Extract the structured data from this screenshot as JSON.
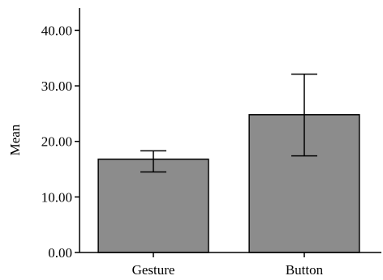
{
  "chart_data": {
    "type": "bar",
    "title": "",
    "xlabel": "",
    "ylabel": "Mean",
    "ylim": [
      0,
      44
    ],
    "yticks": [
      0,
      10,
      20,
      30,
      40
    ],
    "ytick_labels": [
      "0.00",
      "10.00",
      "20.00",
      "30.00",
      "40.00"
    ],
    "categories": [
      "Gesture",
      "Button"
    ],
    "values": [
      16.8,
      24.8
    ],
    "error_low": [
      14.5,
      17.4
    ],
    "error_high": [
      18.3,
      32.1
    ],
    "grid": false,
    "legend": "none"
  },
  "colors": {
    "bar_fill": "#8c8c8c",
    "bar_stroke": "#000000",
    "axis": "#000000",
    "background": "#ffffff"
  }
}
